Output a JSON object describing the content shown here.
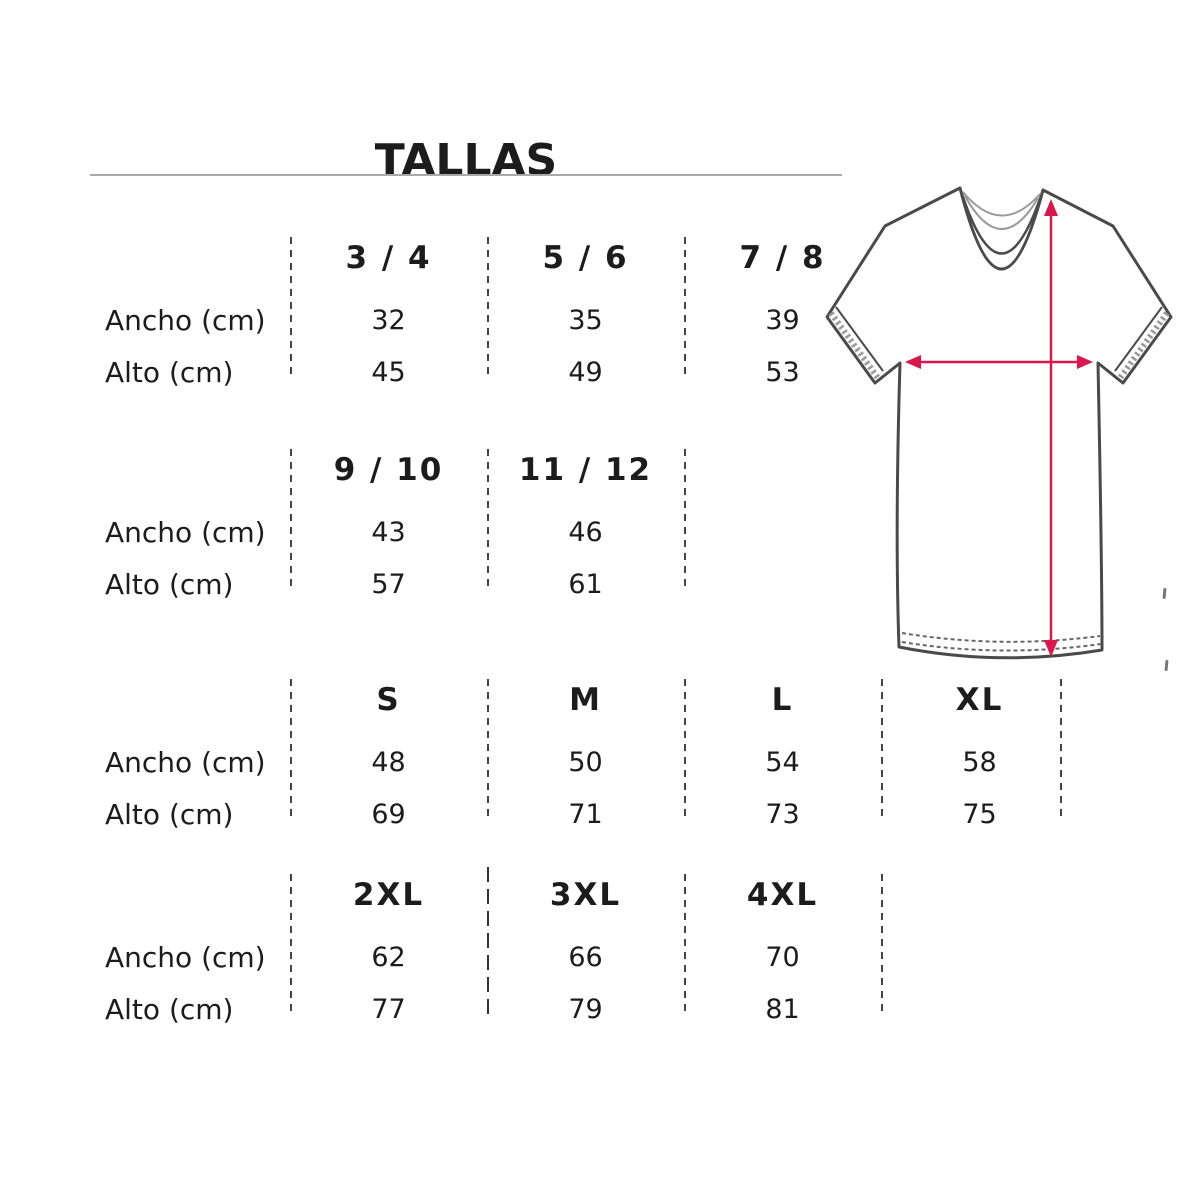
{
  "title": "TALLAS",
  "table": {
    "row_labels": {
      "ancho": "Ancho (cm)",
      "alto": "Alto (cm)"
    },
    "size_groups": [
      {
        "columns": [
          {
            "size": "3 / 4",
            "ancho": "32",
            "alto": "45"
          },
          {
            "size": "5 / 6",
            "ancho": "35",
            "alto": "49"
          },
          {
            "size": "7 / 8",
            "ancho": "39",
            "alto": "53"
          }
        ]
      },
      {
        "columns": [
          {
            "size": "9 / 10",
            "ancho": "43",
            "alto": "57"
          },
          {
            "size": "11 / 12",
            "ancho": "46",
            "alto": "61"
          }
        ]
      },
      {
        "columns": [
          {
            "size": "S",
            "ancho": "48",
            "alto": "69"
          },
          {
            "size": "M",
            "ancho": "50",
            "alto": "71"
          },
          {
            "size": "L",
            "ancho": "54",
            "alto": "73"
          },
          {
            "size": "XL",
            "ancho": "58",
            "alto": "75"
          }
        ]
      },
      {
        "columns": [
          {
            "size": "2XL",
            "ancho": "62",
            "alto": "77"
          },
          {
            "size": "3XL",
            "ancho": "66",
            "alto": "79"
          },
          {
            "size": "4XL",
            "ancho": "70",
            "alto": "81"
          }
        ]
      }
    ]
  },
  "diagram": {
    "description": "t-shirt line drawing with width arrow across chest and height arrow from shoulder to hem"
  },
  "colors": {
    "text": "#1c1c1c",
    "separator": "#444444",
    "arrow": "#d8174b",
    "shirt_outline": "#4a4a4a",
    "title_rule": "#a9a9a9",
    "background": "#ffffff"
  }
}
